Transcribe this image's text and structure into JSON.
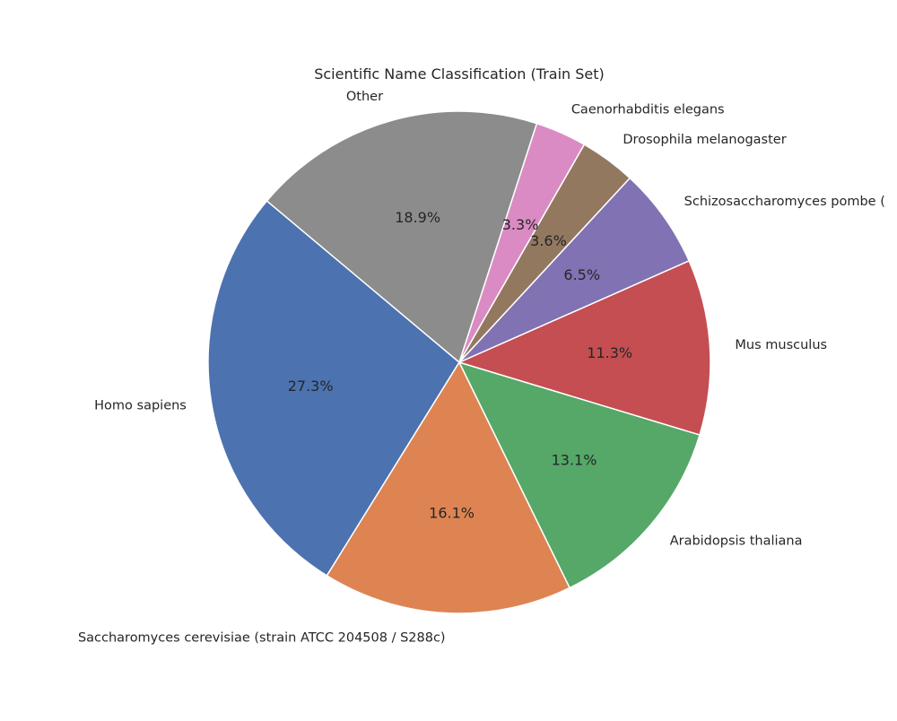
{
  "chart_data": {
    "type": "pie",
    "title": "Scientific Name Classification (Train Set)",
    "start_angle_deg": 140,
    "direction": "counterclockwise",
    "slices": [
      {
        "label": "Homo sapiens",
        "value": 27.3,
        "pct_label": "27.3%",
        "color": "#4c72b0"
      },
      {
        "label": "Saccharomyces cerevisiae (strain ATCC 204508 / S288c)",
        "value": 16.1,
        "pct_label": "16.1%",
        "color": "#dd8452"
      },
      {
        "label": "Arabidopsis thaliana",
        "value": 13.1,
        "pct_label": "13.1%",
        "color": "#55a868"
      },
      {
        "label": "Mus musculus",
        "value": 11.3,
        "pct_label": "11.3%",
        "color": "#c44e52"
      },
      {
        "label": "Schizosaccharomyces pombe (",
        "value": 6.5,
        "pct_label": "6.5%",
        "color": "#8172b3"
      },
      {
        "label": "Drosophila melanogaster",
        "value": 3.6,
        "pct_label": "3.6%",
        "color": "#937860"
      },
      {
        "label": "Caenorhabditis elegans",
        "value": 3.3,
        "pct_label": "3.3%",
        "color": "#da8bc3"
      },
      {
        "label": "Other",
        "value": 18.9,
        "pct_label": "18.9%",
        "color": "#8c8c8c"
      }
    ]
  }
}
